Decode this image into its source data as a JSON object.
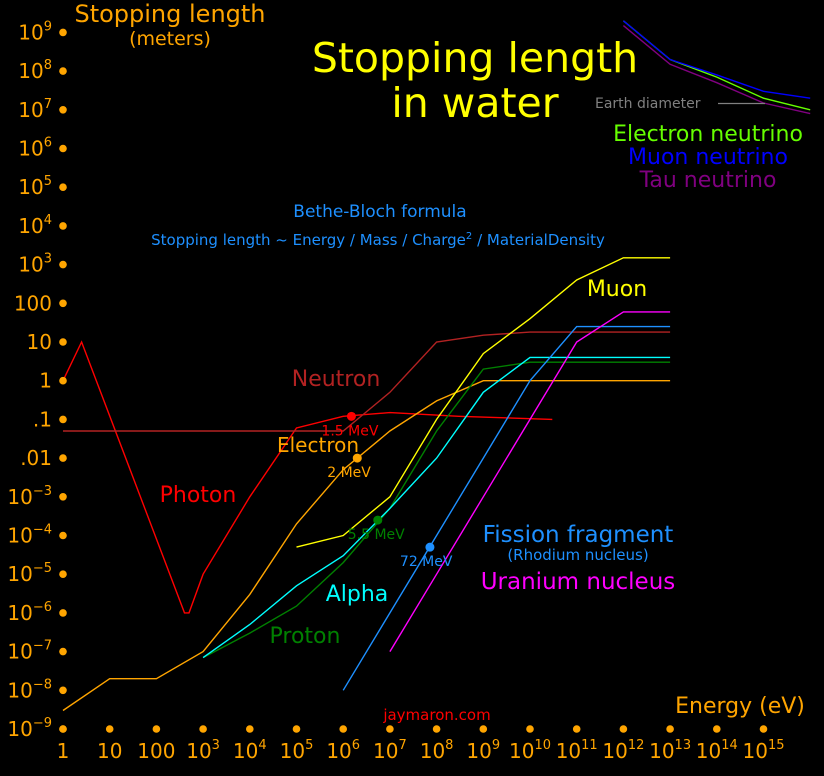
{
  "chart_data": {
    "type": "line",
    "title": [
      "Stopping length",
      "in water"
    ],
    "ylabel": "Stopping length",
    "ylabel_unit": "(meters)",
    "xlabel": "Energy (eV)",
    "x_scale": "log",
    "y_scale": "log",
    "xlim": [
      1,
      1e+16
    ],
    "ylim": [
      1e-09,
      1000000000.0
    ],
    "x_ticks": [
      {
        "v": 1,
        "b": "1",
        "s": ""
      },
      {
        "v": 10,
        "b": "10",
        "s": ""
      },
      {
        "v": 100,
        "b": "100",
        "s": ""
      },
      {
        "v": 1000.0,
        "b": "10",
        "s": "3"
      },
      {
        "v": 10000.0,
        "b": "10",
        "s": "4"
      },
      {
        "v": 100000.0,
        "b": "10",
        "s": "5"
      },
      {
        "v": 1000000.0,
        "b": "10",
        "s": "6"
      },
      {
        "v": 10000000.0,
        "b": "10",
        "s": "7"
      },
      {
        "v": 100000000.0,
        "b": "10",
        "s": "8"
      },
      {
        "v": 1000000000.0,
        "b": "10",
        "s": "9"
      },
      {
        "v": 10000000000.0,
        "b": "10",
        "s": "10"
      },
      {
        "v": 100000000000.0,
        "b": "10",
        "s": "11"
      },
      {
        "v": 1000000000000.0,
        "b": "10",
        "s": "12"
      },
      {
        "v": 10000000000000.0,
        "b": "10",
        "s": "13"
      },
      {
        "v": 100000000000000.0,
        "b": "10",
        "s": "14"
      },
      {
        "v": 1000000000000000.0,
        "b": "10",
        "s": "15"
      }
    ],
    "y_ticks": [
      {
        "v": 1000000000.0,
        "b": "10",
        "s": "9"
      },
      {
        "v": 100000000.0,
        "b": "10",
        "s": "8"
      },
      {
        "v": 10000000.0,
        "b": "10",
        "s": "7"
      },
      {
        "v": 1000000.0,
        "b": "10",
        "s": "6"
      },
      {
        "v": 100000.0,
        "b": "10",
        "s": "5"
      },
      {
        "v": 10000.0,
        "b": "10",
        "s": "4"
      },
      {
        "v": 1000.0,
        "b": "10",
        "s": "3"
      },
      {
        "v": 100,
        "b": "100",
        "s": ""
      },
      {
        "v": 10,
        "b": "10",
        "s": ""
      },
      {
        "v": 1,
        "b": "1",
        "s": ""
      },
      {
        "v": 0.1,
        "b": ".1",
        "s": ""
      },
      {
        "v": 0.01,
        "b": ".01",
        "s": ""
      },
      {
        "v": 0.001,
        "b": "10",
        "s": "−3"
      },
      {
        "v": 0.0001,
        "b": "10",
        "s": "−4"
      },
      {
        "v": 1e-05,
        "b": "10",
        "s": "−5"
      },
      {
        "v": 1e-06,
        "b": "10",
        "s": "−6"
      },
      {
        "v": 1e-07,
        "b": "10",
        "s": "−7"
      },
      {
        "v": 1e-08,
        "b": "10",
        "s": "−8"
      },
      {
        "v": 1e-09,
        "b": "10",
        "s": "−9"
      }
    ],
    "series": [
      {
        "name": "Photon",
        "color": "#ff0000",
        "x": [
          1,
          2.5,
          400.0,
          500.0,
          1000.0,
          10000.0,
          100000.0,
          1000000.0,
          10000000.0,
          300000000.0,
          30000000000.0
        ],
        "y": [
          1,
          10,
          1e-06,
          1e-06,
          1e-05,
          0.001,
          0.06,
          0.12,
          0.15,
          0.12,
          0.1
        ]
      },
      {
        "name": "Neutron",
        "color": "#b22222",
        "x": [
          1,
          1000000.0,
          10000000.0,
          100000000.0,
          1000000000.0,
          10000000000.0,
          1000000000000.0,
          10000000000000.0
        ],
        "y": [
          0.05,
          0.05,
          0.5,
          10,
          15,
          18,
          18,
          18
        ]
      },
      {
        "name": "Electron",
        "color": "#ffa500",
        "x": [
          1,
          10,
          100,
          1000.0,
          10000.0,
          100000.0,
          1000000.0,
          10000000.0,
          100000000.0,
          1000000000.0,
          10000000000000.0
        ],
        "y": [
          3e-09,
          2e-08,
          2e-08,
          1e-07,
          3e-06,
          0.0002,
          0.005,
          0.05,
          0.3,
          1,
          1
        ]
      },
      {
        "name": "Proton",
        "color": "#008000",
        "x": [
          1000.0,
          10000.0,
          100000.0,
          1000000.0,
          10000000.0,
          100000000.0,
          1000000000.0,
          10000000000.0,
          10000000000000.0
        ],
        "y": [
          7e-08,
          3e-07,
          1.5e-06,
          2e-05,
          0.0005,
          0.05,
          2,
          3,
          3
        ]
      },
      {
        "name": "Alpha",
        "color": "#00ffff",
        "x": [
          1000.0,
          10000.0,
          100000.0,
          1000000.0,
          10000000.0,
          100000000.0,
          1000000000.0,
          10000000000.0,
          10000000000000.0
        ],
        "y": [
          7e-08,
          5e-07,
          5e-06,
          3e-05,
          0.0005,
          0.01,
          0.5,
          4,
          4
        ]
      },
      {
        "name": "Muon",
        "color": "#ffff00",
        "x": [
          100000.0,
          1000000.0,
          10000000.0,
          100000000.0,
          1000000000.0,
          10000000000.0,
          100000000000.0,
          1000000000000.0,
          10000000000000.0
        ],
        "y": [
          5e-05,
          0.0001,
          0.001,
          0.1,
          5,
          40,
          400,
          1500,
          1500
        ]
      },
      {
        "name": "Fission fragment",
        "color": "#1e90ff",
        "x": [
          1000000.0,
          10000000.0,
          100000000.0,
          1000000000.0,
          10000000000.0,
          100000000000.0,
          1000000000000.0,
          10000000000000.0
        ],
        "y": [
          1e-08,
          1e-06,
          0.0001,
          0.01,
          1,
          25,
          25,
          25
        ]
      },
      {
        "name": "Uranium nucleus",
        "color": "#ff00ff",
        "x": [
          10000000.0,
          100000000.0,
          1000000000.0,
          10000000000.0,
          100000000000.0,
          1000000000000.0,
          10000000000000.0
        ],
        "y": [
          1e-07,
          1e-05,
          0.001,
          0.1,
          10,
          60,
          60
        ]
      },
      {
        "name": "Electron neutrino",
        "color": "#66ff00",
        "x": [
          1000000000000.0,
          10000000000000.0,
          100000000000000.0,
          1000000000000000.0,
          1e+16
        ],
        "y": [
          2000000000.0,
          200000000.0,
          70000000.0,
          20000000.0,
          10000000.0
        ]
      },
      {
        "name": "Muon neutrino",
        "color": "#0000ff",
        "x": [
          1000000000000.0,
          10000000000000.0,
          100000000000000.0,
          1000000000000000.0,
          1e+16
        ],
        "y": [
          2000000000.0,
          200000000.0,
          80000000.0,
          30000000.0,
          20000000.0
        ]
      },
      {
        "name": "Tau neutrino",
        "color": "#800080",
        "x": [
          1000000000000.0,
          10000000000000.0,
          100000000000000.0,
          1000000000000000.0,
          1e+16
        ],
        "y": [
          1500000000.0,
          150000000.0,
          50000000.0,
          15000000.0,
          8000000.0
        ]
      }
    ],
    "series_labels": [
      {
        "key": "photon",
        "text": "Photon",
        "color": "#ff0000"
      },
      {
        "key": "neutron",
        "text": "Neutron",
        "color": "#b22222"
      },
      {
        "key": "electron",
        "text": "Electron",
        "color": "#ffa500"
      },
      {
        "key": "proton",
        "text": "Proton",
        "color": "#008000"
      },
      {
        "key": "alpha",
        "text": "Alpha",
        "color": "#00ffff"
      },
      {
        "key": "muon",
        "text": "Muon",
        "color": "#ffff00"
      },
      {
        "key": "fission",
        "text": "Fission fragment",
        "color": "#1e90ff"
      },
      {
        "key": "fission_sub",
        "text": "(Rhodium nucleus)",
        "color": "#1e90ff"
      },
      {
        "key": "uranium",
        "text": "Uranium nucleus",
        "color": "#ff00ff"
      },
      {
        "key": "nu_e",
        "text": "Electron neutrino",
        "color": "#66ff00"
      },
      {
        "key": "nu_mu",
        "text": "Muon neutrino",
        "color": "#0000ff"
      },
      {
        "key": "nu_tau",
        "text": "Tau neutrino",
        "color": "#800080"
      }
    ],
    "markers": [
      {
        "name": "photon-1.5MeV",
        "x": 1500000.0,
        "y": 0.12,
        "label": "1.5 MeV",
        "color": "#ff0000"
      },
      {
        "name": "electron-2MeV",
        "x": 2000000.0,
        "y": 0.01,
        "label": "2 MeV",
        "color": "#ffa500"
      },
      {
        "name": "alpha-5.5MeV",
        "x": 5500000.0,
        "y": 0.00025,
        "label": "5.5 MeV",
        "color": "#008000"
      },
      {
        "name": "fission-72MeV",
        "x": 72000000.0,
        "y": 5e-05,
        "label": "72 MeV",
        "color": "#1e90ff"
      }
    ],
    "earth_diameter_label": "Earth diameter",
    "formula_title": "Bethe-Bloch formula",
    "formula": {
      "pre": "Stopping length ~ Energy / Mass / Charge",
      "sup": "2",
      "post": " / MaterialDensity"
    },
    "watermark": "jaymaron.com",
    "colors": {
      "axis": "#ffa500",
      "title": "#ffff00",
      "formula": "#1e90ff",
      "watermark": "#ff0000",
      "earth": "#808080"
    }
  }
}
